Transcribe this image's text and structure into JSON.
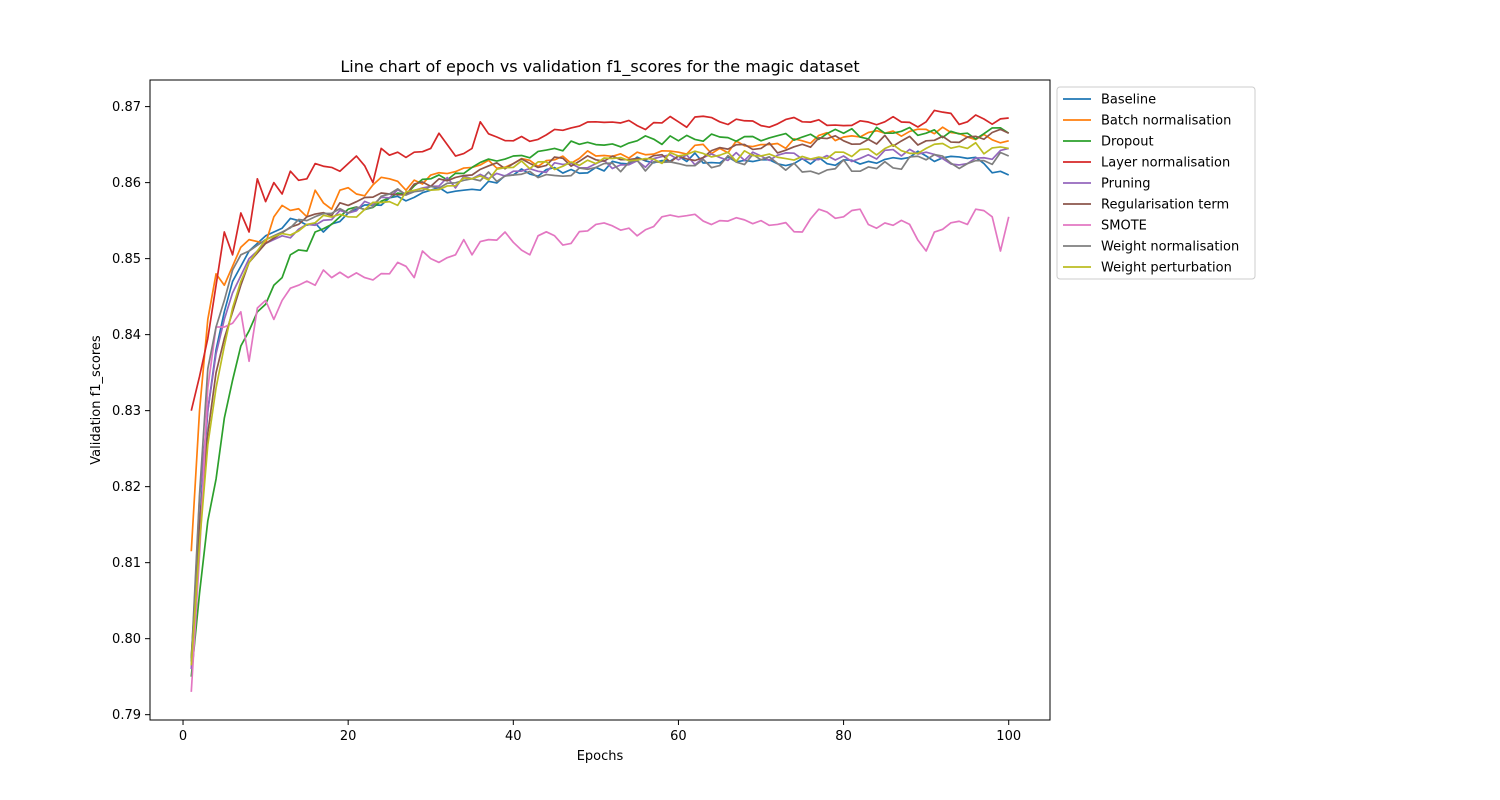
{
  "chart_data": {
    "type": "line",
    "title": "Line chart of epoch vs validation f1_scores for the magic dataset",
    "xlabel": "Epochs",
    "ylabel": "Validation f1_scores",
    "xlim": [
      -4,
      105
    ],
    "ylim": [
      0.7893,
      0.8735
    ],
    "xticks": [
      0,
      20,
      40,
      60,
      80,
      100
    ],
    "yticks": [
      0.79,
      0.8,
      0.81,
      0.82,
      0.83,
      0.84,
      0.85,
      0.86,
      0.87
    ],
    "grid": false,
    "legend_position": "outside-right-top",
    "x": [
      1,
      2,
      3,
      4,
      5,
      6,
      7,
      8,
      9,
      10,
      11,
      12,
      13,
      14,
      15,
      16,
      17,
      18,
      19,
      20,
      21,
      22,
      23,
      24,
      25,
      26,
      27,
      28,
      29,
      30,
      31,
      32,
      33,
      34,
      35,
      36,
      37,
      38,
      39,
      40,
      41,
      42,
      43,
      44,
      45,
      46,
      47,
      48,
      49,
      50,
      51,
      52,
      53,
      54,
      55,
      56,
      57,
      58,
      59,
      60,
      61,
      62,
      63,
      64,
      65,
      66,
      67,
      68,
      69,
      70,
      71,
      72,
      73,
      74,
      75,
      76,
      77,
      78,
      79,
      80,
      81,
      82,
      83,
      84,
      85,
      86,
      87,
      88,
      89,
      90,
      91,
      92,
      93,
      94,
      95,
      96,
      97,
      98,
      99,
      100
    ],
    "anchors": [
      {
        "name": "Baseline",
        "color": "#1f77b4",
        "pts": [
          [
            1,
            0.797
          ],
          [
            2,
            0.815
          ],
          [
            3,
            0.83
          ],
          [
            4,
            0.838
          ],
          [
            5,
            0.843
          ],
          [
            6,
            0.847
          ],
          [
            8,
            0.851
          ],
          [
            10,
            0.853
          ],
          [
            14,
            0.855
          ],
          [
            17,
            0.8535
          ],
          [
            20,
            0.856
          ],
          [
            25,
            0.858
          ],
          [
            30,
            0.859
          ],
          [
            34,
            0.859
          ],
          [
            36,
            0.859
          ],
          [
            40,
            0.861
          ],
          [
            50,
            0.862
          ],
          [
            60,
            0.8635
          ],
          [
            70,
            0.863
          ],
          [
            80,
            0.863
          ],
          [
            90,
            0.8635
          ],
          [
            97,
            0.8625
          ],
          [
            100,
            0.861
          ]
        ]
      },
      {
        "name": "Batch normalisation",
        "color": "#ff7f0e",
        "pts": [
          [
            1,
            0.8115
          ],
          [
            2,
            0.83
          ],
          [
            3,
            0.842
          ],
          [
            4,
            0.848
          ],
          [
            5,
            0.8465
          ],
          [
            6,
            0.849
          ],
          [
            7,
            0.8515
          ],
          [
            8,
            0.8525
          ],
          [
            10,
            0.852
          ],
          [
            11,
            0.8555
          ],
          [
            12,
            0.857
          ],
          [
            15,
            0.8555
          ],
          [
            16,
            0.859
          ],
          [
            18,
            0.8565
          ],
          [
            19,
            0.859
          ],
          [
            21,
            0.8585
          ],
          [
            25,
            0.8605
          ],
          [
            27,
            0.859
          ],
          [
            30,
            0.861
          ],
          [
            35,
            0.862
          ],
          [
            40,
            0.8625
          ],
          [
            45,
            0.863
          ],
          [
            50,
            0.8635
          ],
          [
            55,
            0.864
          ],
          [
            60,
            0.864
          ],
          [
            65,
            0.8645
          ],
          [
            70,
            0.865
          ],
          [
            75,
            0.8655
          ],
          [
            80,
            0.866
          ],
          [
            85,
            0.8665
          ],
          [
            90,
            0.867
          ],
          [
            95,
            0.866
          ],
          [
            100,
            0.8655
          ]
        ]
      },
      {
        "name": "Dropout",
        "color": "#2ca02c",
        "pts": [
          [
            1,
            0.795
          ],
          [
            2,
            0.806
          ],
          [
            3,
            0.8155
          ],
          [
            4,
            0.821
          ],
          [
            5,
            0.829
          ],
          [
            6,
            0.834
          ],
          [
            7,
            0.8385
          ],
          [
            8,
            0.8405
          ],
          [
            9,
            0.843
          ],
          [
            10,
            0.844
          ],
          [
            11,
            0.8465
          ],
          [
            12,
            0.8475
          ],
          [
            13,
            0.8505
          ],
          [
            15,
            0.851
          ],
          [
            16,
            0.8535
          ],
          [
            18,
            0.8545
          ],
          [
            20,
            0.8565
          ],
          [
            25,
            0.858
          ],
          [
            30,
            0.8605
          ],
          [
            35,
            0.862
          ],
          [
            40,
            0.8635
          ],
          [
            45,
            0.8645
          ],
          [
            50,
            0.865
          ],
          [
            55,
            0.8655
          ],
          [
            60,
            0.8655
          ],
          [
            65,
            0.866
          ],
          [
            70,
            0.8655
          ],
          [
            75,
            0.866
          ],
          [
            80,
            0.8665
          ],
          [
            85,
            0.8665
          ],
          [
            90,
            0.8665
          ],
          [
            95,
            0.8665
          ],
          [
            100,
            0.8665
          ]
        ]
      },
      {
        "name": "Layer normalisation",
        "color": "#d62728",
        "pts": [
          [
            1,
            0.83
          ],
          [
            2,
            0.8345
          ],
          [
            3,
            0.8395
          ],
          [
            4,
            0.8465
          ],
          [
            5,
            0.8535
          ],
          [
            6,
            0.8505
          ],
          [
            7,
            0.856
          ],
          [
            8,
            0.8535
          ],
          [
            9,
            0.8605
          ],
          [
            10,
            0.8575
          ],
          [
            11,
            0.86
          ],
          [
            12,
            0.8585
          ],
          [
            13,
            0.8615
          ],
          [
            15,
            0.8605
          ],
          [
            16,
            0.8625
          ],
          [
            18,
            0.862
          ],
          [
            20,
            0.8625
          ],
          [
            21,
            0.8635
          ],
          [
            23,
            0.86
          ],
          [
            24,
            0.8645
          ],
          [
            26,
            0.864
          ],
          [
            28,
            0.864
          ],
          [
            30,
            0.8645
          ],
          [
            31,
            0.8665
          ],
          [
            33,
            0.8635
          ],
          [
            35,
            0.8645
          ],
          [
            36,
            0.868
          ],
          [
            38,
            0.866
          ],
          [
            40,
            0.8655
          ],
          [
            45,
            0.867
          ],
          [
            50,
            0.868
          ],
          [
            55,
            0.8675
          ],
          [
            60,
            0.868
          ],
          [
            65,
            0.868
          ],
          [
            70,
            0.8675
          ],
          [
            75,
            0.868
          ],
          [
            80,
            0.8675
          ],
          [
            85,
            0.868
          ],
          [
            90,
            0.868
          ],
          [
            91,
            0.8695
          ],
          [
            95,
            0.868
          ],
          [
            100,
            0.8685
          ]
        ]
      },
      {
        "name": "Pruning",
        "color": "#9467bd",
        "pts": [
          [
            1,
            0.796
          ],
          [
            2,
            0.8185
          ],
          [
            3,
            0.83
          ],
          [
            4,
            0.8375
          ],
          [
            5,
            0.842
          ],
          [
            6,
            0.8455
          ],
          [
            8,
            0.85
          ],
          [
            10,
            0.852
          ],
          [
            15,
            0.8545
          ],
          [
            20,
            0.856
          ],
          [
            25,
            0.858
          ],
          [
            30,
            0.8595
          ],
          [
            35,
            0.8605
          ],
          [
            40,
            0.8615
          ],
          [
            50,
            0.8625
          ],
          [
            60,
            0.863
          ],
          [
            70,
            0.8635
          ],
          [
            80,
            0.8635
          ],
          [
            90,
            0.864
          ],
          [
            95,
            0.8625
          ],
          [
            100,
            0.8645
          ]
        ]
      },
      {
        "name": "Regularisation term",
        "color": "#8c564b",
        "pts": [
          [
            1,
            0.7975
          ],
          [
            2,
            0.815
          ],
          [
            3,
            0.827
          ],
          [
            4,
            0.835
          ],
          [
            5,
            0.8395
          ],
          [
            6,
            0.843
          ],
          [
            7,
            0.8465
          ],
          [
            8,
            0.8495
          ],
          [
            10,
            0.852
          ],
          [
            15,
            0.8555
          ],
          [
            20,
            0.857
          ],
          [
            25,
            0.8585
          ],
          [
            30,
            0.8595
          ],
          [
            35,
            0.861
          ],
          [
            40,
            0.8625
          ],
          [
            50,
            0.863
          ],
          [
            60,
            0.8635
          ],
          [
            70,
            0.8645
          ],
          [
            80,
            0.8655
          ],
          [
            90,
            0.8655
          ],
          [
            95,
            0.866
          ],
          [
            100,
            0.8665
          ]
        ]
      },
      {
        "name": "SMOTE",
        "color": "#e377c2",
        "pts": [
          [
            1,
            0.793
          ],
          [
            2,
            0.811
          ],
          [
            3,
            0.833
          ],
          [
            4,
            0.841
          ],
          [
            5,
            0.841
          ],
          [
            6,
            0.8415
          ],
          [
            7,
            0.843
          ],
          [
            8,
            0.8365
          ],
          [
            9,
            0.8435
          ],
          [
            10,
            0.8445
          ],
          [
            11,
            0.842
          ],
          [
            12,
            0.8445
          ],
          [
            14,
            0.8465
          ],
          [
            16,
            0.8465
          ],
          [
            17,
            0.8485
          ],
          [
            18,
            0.8475
          ],
          [
            20,
            0.8475
          ],
          [
            22,
            0.8475
          ],
          [
            25,
            0.848
          ],
          [
            26,
            0.8495
          ],
          [
            28,
            0.8475
          ],
          [
            29,
            0.851
          ],
          [
            31,
            0.8495
          ],
          [
            33,
            0.8505
          ],
          [
            34,
            0.8525
          ],
          [
            35,
            0.8505
          ],
          [
            37,
            0.8525
          ],
          [
            39,
            0.8535
          ],
          [
            42,
            0.8505
          ],
          [
            43,
            0.853
          ],
          [
            47,
            0.852
          ],
          [
            50,
            0.8545
          ],
          [
            55,
            0.853
          ],
          [
            58,
            0.8555
          ],
          [
            60,
            0.8555
          ],
          [
            65,
            0.855
          ],
          [
            70,
            0.855
          ],
          [
            75,
            0.8535
          ],
          [
            77,
            0.8565
          ],
          [
            80,
            0.8555
          ],
          [
            82,
            0.8565
          ],
          [
            84,
            0.854
          ],
          [
            88,
            0.8545
          ],
          [
            90,
            0.851
          ],
          [
            91,
            0.8535
          ],
          [
            95,
            0.8545
          ],
          [
            96,
            0.8565
          ],
          [
            98,
            0.8555
          ],
          [
            99,
            0.851
          ],
          [
            100,
            0.8555
          ]
        ]
      },
      {
        "name": "Weight normalisation",
        "color": "#7f7f7f",
        "pts": [
          [
            1,
            0.797
          ],
          [
            2,
            0.819
          ],
          [
            3,
            0.8355
          ],
          [
            4,
            0.841
          ],
          [
            5,
            0.8445
          ],
          [
            6,
            0.8485
          ],
          [
            7,
            0.8505
          ],
          [
            8,
            0.851
          ],
          [
            10,
            0.8525
          ],
          [
            15,
            0.855
          ],
          [
            20,
            0.856
          ],
          [
            25,
            0.8585
          ],
          [
            30,
            0.8595
          ],
          [
            35,
            0.8605
          ],
          [
            40,
            0.861
          ],
          [
            50,
            0.862
          ],
          [
            60,
            0.8625
          ],
          [
            70,
            0.863
          ],
          [
            76,
            0.8615
          ],
          [
            80,
            0.863
          ],
          [
            82,
            0.8615
          ],
          [
            90,
            0.863
          ],
          [
            95,
            0.8625
          ],
          [
            100,
            0.8635
          ]
        ]
      },
      {
        "name": "Weight perturbation",
        "color": "#bcbd22",
        "pts": [
          [
            1,
            0.7965
          ],
          [
            2,
            0.8125
          ],
          [
            3,
            0.8255
          ],
          [
            4,
            0.833
          ],
          [
            5,
            0.8385
          ],
          [
            6,
            0.8435
          ],
          [
            7,
            0.847
          ],
          [
            8,
            0.8495
          ],
          [
            10,
            0.8525
          ],
          [
            15,
            0.8545
          ],
          [
            20,
            0.8555
          ],
          [
            25,
            0.8575
          ],
          [
            30,
            0.859
          ],
          [
            35,
            0.8605
          ],
          [
            40,
            0.862
          ],
          [
            50,
            0.8625
          ],
          [
            60,
            0.8635
          ],
          [
            70,
            0.8635
          ],
          [
            80,
            0.864
          ],
          [
            90,
            0.8645
          ],
          [
            95,
            0.8645
          ],
          [
            100,
            0.8645
          ]
        ]
      }
    ]
  }
}
